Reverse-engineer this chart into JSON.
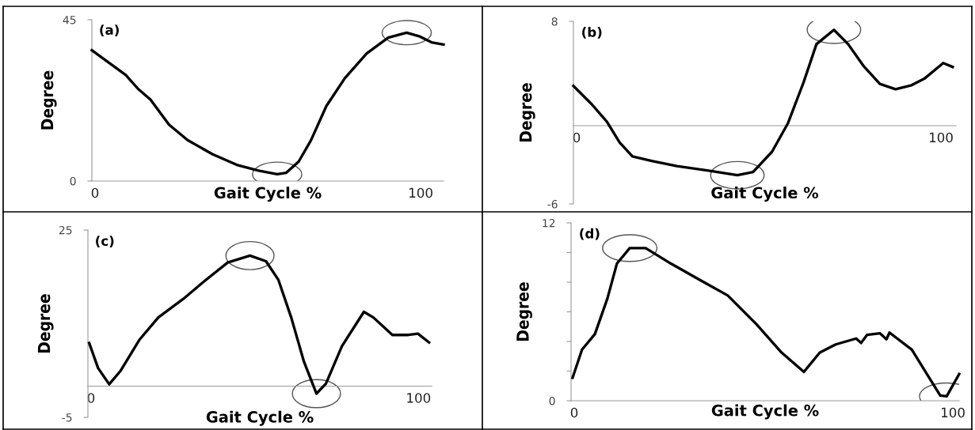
{
  "chart_data": [
    {
      "type": "line",
      "title": "(a)",
      "xlabel": "Gait Cycle %",
      "ylabel": "Degree",
      "xlim": [
        0,
        108
      ],
      "xticks": [
        0,
        100
      ],
      "ylim": [
        0,
        45
      ],
      "yticks": [
        0,
        45
      ],
      "grid": false,
      "legend": false,
      "marker": "none",
      "line_style": "solid",
      "series": [
        {
          "color": "#000000",
          "x": [
            0,
            10.4,
            14.2,
            18,
            23.7,
            29.4,
            37,
            44.5,
            51.2,
            56.9,
            59.7,
            63.5,
            67.3,
            72,
            77.7,
            84.4,
            91,
            96.7,
            100.5,
            104.3,
            108
          ],
          "values": [
            36.5,
            29.6,
            25.7,
            22.7,
            15.7,
            11.4,
            7.5,
            4.5,
            2.9,
            1.9,
            2.3,
            5.4,
            11.4,
            20.9,
            28.7,
            35.6,
            40,
            41.4,
            40.4,
            38.7,
            38.1
          ]
        }
      ]
    },
    {
      "type": "line",
      "title": "(b)",
      "xlabel": "Gait Cycle %",
      "ylabel": "Degree",
      "xlim": [
        0,
        105
      ],
      "xticks": [
        0,
        100
      ],
      "ylim": [
        -6,
        8
      ],
      "yticks": [
        -6,
        8
      ],
      "grid": false,
      "legend": false,
      "marker": "none",
      "line_style": "solid",
      "series": [
        {
          "color": "#000000",
          "x": [
            0,
            5,
            9.2,
            12.7,
            16.2,
            21.5,
            28.4,
            37.1,
            45,
            49.3,
            54.5,
            58.9,
            63.2,
            66.7,
            71.5,
            75.4,
            79.7,
            84.1,
            88.4,
            92.8,
            96.3,
            101.5,
            104.1
          ],
          "values": [
            3.05,
            1.65,
            0.3,
            -1.3,
            -2.35,
            -2.7,
            -3.1,
            -3.45,
            -3.8,
            -3.55,
            -2,
            0.2,
            3.35,
            6.25,
            7.35,
            6.25,
            4.55,
            3.2,
            2.8,
            3.1,
            3.6,
            4.8,
            4.5
          ]
        }
      ]
    },
    {
      "type": "line",
      "title": "(c)",
      "xlabel": "Gait Cycle %",
      "ylabel": "Degree",
      "xlim": [
        0,
        105
      ],
      "xticks": [
        0,
        100
      ],
      "ylim": [
        -5,
        25
      ],
      "yticks": [
        -5,
        25
      ],
      "grid": false,
      "legend": false,
      "marker": "none",
      "line_style": "solid",
      "series": [
        {
          "color": "#000000",
          "x": [
            0.4,
            3.1,
            6.5,
            9.9,
            15.7,
            21.5,
            29.2,
            36,
            42.7,
            49.5,
            54.4,
            58.2,
            62.1,
            66,
            69.8,
            72.7,
            77.6,
            84.3,
            87.2,
            93,
            97.9,
            100.8,
            104.2
          ],
          "values": [
            6.9,
            2.9,
            0.3,
            2.4,
            7.4,
            11,
            14,
            17,
            19.8,
            20.9,
            20,
            17,
            11,
            3.9,
            -1.2,
            0.4,
            6.4,
            11.9,
            11,
            8.2,
            8.2,
            8.4,
            7
          ]
        }
      ]
    },
    {
      "type": "line",
      "title": "(d)",
      "xlabel": "Gait Cycle %",
      "ylabel": "Degree",
      "xlim": [
        0,
        102.5
      ],
      "xticks": [
        0,
        100
      ],
      "ylim": [
        0,
        12
      ],
      "yticks": [
        0,
        {
          "value": 2,
          "label": null
        },
        {
          "value": 4,
          "label": null
        },
        {
          "value": 6,
          "label": null
        },
        {
          "value": 8,
          "label": null
        },
        {
          "value": 10,
          "label": null
        },
        12
      ],
      "grid": false,
      "legend": false,
      "marker": "none",
      "line_style": "solid",
      "series": [
        {
          "color": "#000000",
          "x": [
            0.4,
            2.9,
            6.3,
            9.6,
            12.1,
            15.5,
            19.7,
            26.4,
            34.7,
            41.4,
            49,
            55.6,
            61.5,
            65.7,
            69.9,
            75.3,
            76.6,
            78.2,
            81.6,
            83.3,
            84.1,
            90,
            94.1,
            97.5,
            99.2,
            102.5
          ],
          "values": [
            1.55,
            3.45,
            4.5,
            6.9,
            9.25,
            10.3,
            10.3,
            9.25,
            8.05,
            7.1,
            5.15,
            3.25,
            1.95,
            3.25,
            3.8,
            4.2,
            3.9,
            4.45,
            4.55,
            4.15,
            4.6,
            3.45,
            1.75,
            0.35,
            0.3,
            1.8
          ]
        }
      ]
    }
  ]
}
